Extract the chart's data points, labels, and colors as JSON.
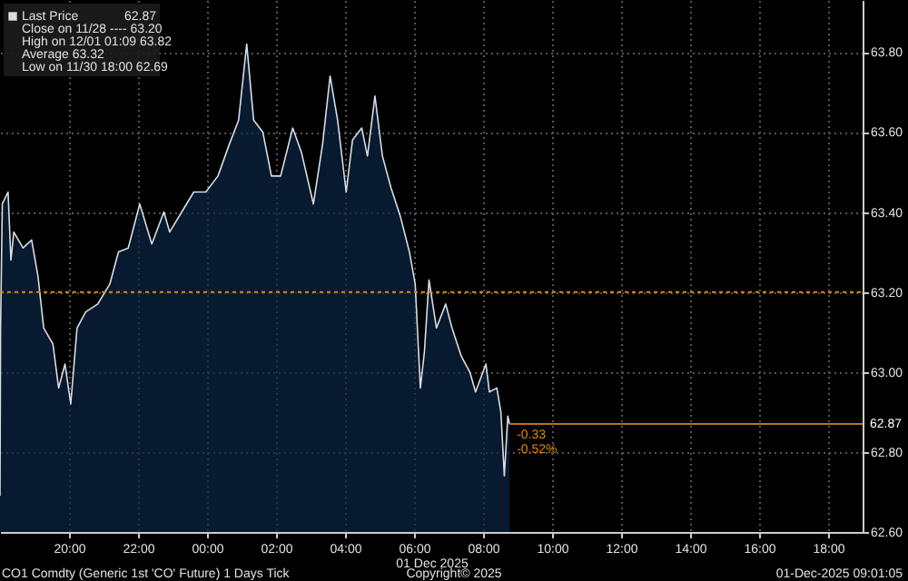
{
  "chart_data": {
    "type": "area",
    "xlabel": "01 Dec 2025",
    "x": [
      "2025-11-30T18:00",
      "2025-11-30T18:01",
      "2025-11-30T18:04",
      "2025-11-30T18:14",
      "2025-11-30T18:19",
      "2025-11-30T18:24",
      "2025-11-30T18:40",
      "2025-11-30T18:55",
      "2025-11-30T19:06",
      "2025-11-30T19:16",
      "2025-11-30T19:32",
      "2025-11-30T19:42",
      "2025-11-30T19:53",
      "2025-11-30T20:03",
      "2025-11-30T20:14",
      "2025-11-30T20:29",
      "2025-11-30T20:50",
      "2025-11-30T21:11",
      "2025-11-30T21:26",
      "2025-11-30T21:43",
      "2025-11-30T22:03",
      "2025-11-30T22:24",
      "2025-11-30T22:45",
      "2025-11-30T22:55",
      "2025-11-30T23:16",
      "2025-11-30T23:37",
      "2025-11-30T23:58",
      "2025-12-01T00:19",
      "2025-12-01T00:39",
      "2025-12-01T00:55",
      "2025-12-01T01:09",
      "2025-12-01T01:21",
      "2025-12-01T01:37",
      "2025-12-01T01:52",
      "2025-12-01T02:08",
      "2025-12-01T02:29",
      "2025-12-01T02:44",
      "2025-12-01T03:05",
      "2025-12-01T03:21",
      "2025-12-01T03:34",
      "2025-12-01T03:47",
      "2025-12-01T04:02",
      "2025-12-01T04:13",
      "2025-12-01T04:29",
      "2025-12-01T04:39",
      "2025-12-01T04:52",
      "2025-12-01T05:05",
      "2025-12-01T05:20",
      "2025-12-01T05:36",
      "2025-12-01T05:52",
      "2025-12-01T06:02",
      "2025-12-01T06:11",
      "2025-12-01T06:18",
      "2025-12-01T06:26",
      "2025-12-01T06:39",
      "2025-12-01T06:55",
      "2025-12-01T07:06",
      "2025-12-01T07:22",
      "2025-12-01T07:37",
      "2025-12-01T07:47",
      "2025-12-01T08:05",
      "2025-12-01T08:11",
      "2025-12-01T08:24",
      "2025-12-01T08:31",
      "2025-12-01T08:37",
      "2025-12-01T08:43",
      "2025-12-01T08:46"
    ],
    "series": [
      {
        "name": "Last Price",
        "color": "#d8dde4",
        "values": [
          62.69,
          63.11,
          63.42,
          63.45,
          63.28,
          63.35,
          63.31,
          63.33,
          63.24,
          63.11,
          63.07,
          62.96,
          63.02,
          62.92,
          63.11,
          63.15,
          63.17,
          63.22,
          63.3,
          63.31,
          63.42,
          63.32,
          63.4,
          63.35,
          63.4,
          63.45,
          63.45,
          63.49,
          63.57,
          63.63,
          63.82,
          63.63,
          63.6,
          63.49,
          63.49,
          63.61,
          63.55,
          63.42,
          63.57,
          63.74,
          63.63,
          63.45,
          63.58,
          63.61,
          63.54,
          63.69,
          63.54,
          63.46,
          63.39,
          63.3,
          63.22,
          62.96,
          63.05,
          63.23,
          63.11,
          63.17,
          63.11,
          63.04,
          63.0,
          62.95,
          63.02,
          62.95,
          62.96,
          62.9,
          62.74,
          62.89,
          62.87
        ]
      }
    ],
    "xlim": [
      "2025-11-30T18:00",
      "2025-12-01T19:00"
    ],
    "xticks": [
      {
        "value": "2025-11-30T20:00",
        "label": "20:00"
      },
      {
        "value": "2025-11-30T22:00",
        "label": "22:00"
      },
      {
        "value": "2025-12-01T00:00",
        "label": "00:00"
      },
      {
        "value": "2025-12-01T02:00",
        "label": "02:00"
      },
      {
        "value": "2025-12-01T04:00",
        "label": "04:00"
      },
      {
        "value": "2025-12-01T06:00",
        "label": "06:00"
      },
      {
        "value": "2025-12-01T08:00",
        "label": "08:00"
      },
      {
        "value": "2025-12-01T10:00",
        "label": "10:00"
      },
      {
        "value": "2025-12-01T12:00",
        "label": "12:00"
      },
      {
        "value": "2025-12-01T14:00",
        "label": "14:00"
      },
      {
        "value": "2025-12-01T16:00",
        "label": "16:00"
      },
      {
        "value": "2025-12-01T18:00",
        "label": "18:00"
      }
    ],
    "ylim": [
      62.6,
      63.93
    ],
    "yticks": [
      {
        "value": 62.6,
        "label": "62.60"
      },
      {
        "value": 62.8,
        "label": "62.80"
      },
      {
        "value": 63.0,
        "label": "63.00"
      },
      {
        "value": 63.2,
        "label": "63.20"
      },
      {
        "value": 63.4,
        "label": "63.40"
      },
      {
        "value": 63.6,
        "label": "63.60"
      },
      {
        "value": 63.8,
        "label": "63.80"
      }
    ],
    "ref_lines": [
      {
        "axis": "y",
        "value": 63.2,
        "color": "#e08a00",
        "line_style": "dotted"
      },
      {
        "axis": "y",
        "value": 62.87,
        "label": "62.87",
        "color": "#b8741a",
        "line_style": "solid"
      }
    ],
    "annotations": [
      "62.87",
      "Close on 11/28 ---- 63.20",
      "High on 12/01 01:09 63.82",
      "Average 63.32",
      "Low on 11/30 18:00 62.69",
      {
        "text": "-0.33",
        "x": "2025-12-01T08:46",
        "y": 62.87
      },
      {
        "text": "-0.52%",
        "x": "2025-12-01T08:46",
        "y": 62.87
      },
      "CO1 Comdty (Generic 1st 'CO' Future) 1 Days Tick",
      "Copyright© 2025",
      "01-Dec-2025 09:01:05"
    ],
    "grid": true,
    "legend": "top left"
  }
}
